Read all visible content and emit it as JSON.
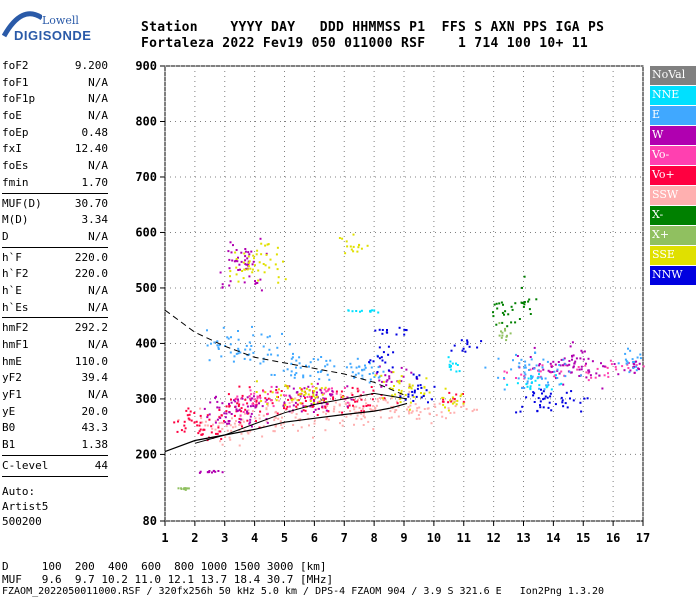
{
  "logo": {
    "top": "Lowell",
    "bottom": "DIGISONDE"
  },
  "header": {
    "line1": "Station    YYYY DAY   DDD HHMMSS P1  FFS S AXN PPS IGA PS",
    "line2": "Fortaleza 2022 Fev19 050 011000 RSF    1 714 100 10+ 11"
  },
  "params": [
    {
      "name": "foF2",
      "value": "9.200"
    },
    {
      "name": "foF1",
      "value": "N/A"
    },
    {
      "name": "foF1p",
      "value": "N/A"
    },
    {
      "name": "foE",
      "value": "N/A"
    },
    {
      "name": "foEp",
      "value": "0.48"
    },
    {
      "name": "fxI",
      "value": "12.40"
    },
    {
      "name": "foEs",
      "value": "N/A"
    },
    {
      "name": "fmin",
      "value": "1.70"
    },
    {
      "sep": true
    },
    {
      "name": "MUF(D)",
      "value": "30.70"
    },
    {
      "name": "M(D)",
      "value": "3.34"
    },
    {
      "name": "D",
      "value": "N/A"
    },
    {
      "sep": true
    },
    {
      "name": "h`F",
      "value": "220.0"
    },
    {
      "name": "h`F2",
      "value": "220.0"
    },
    {
      "name": "h`E",
      "value": "N/A"
    },
    {
      "name": "h`Es",
      "value": "N/A"
    },
    {
      "sep": true
    },
    {
      "name": "hmF2",
      "value": "292.2"
    },
    {
      "name": "hmF1",
      "value": "N/A"
    },
    {
      "name": "hmE",
      "value": "110.0"
    },
    {
      "name": "yF2",
      "value": "39.4"
    },
    {
      "name": "yF1",
      "value": "N/A"
    },
    {
      "name": "yE",
      "value": "20.0"
    },
    {
      "name": "B0",
      "value": "43.3"
    },
    {
      "name": "B1",
      "value": "1.38"
    },
    {
      "sep": true
    },
    {
      "name": "C-level",
      "value": "44"
    },
    {
      "sep": true
    }
  ],
  "auto": {
    "line1": "Auto:",
    "line2": "Artist5",
    "line3": "500200"
  },
  "bottom": {
    "row1": "D     100  200  400  600  800 1000 1500 3000 [km]",
    "row2": "MUF   9.6  9.7 10.2 11.0 12.1 13.7 18.4 30.7 [MHz]",
    "footer": "FZAOM_2022050011000.RSF / 320fx256h 50 kHz 5.0 km / DPS-4 FZAOM 904 / 3.9 S 321.6 E   Ion2Png 1.3.20"
  },
  "legend": [
    {
      "label": "NoVal",
      "color": "#808080"
    },
    {
      "label": "NNE",
      "color": "#00e0ff"
    },
    {
      "label": "E",
      "color": "#40a8ff"
    },
    {
      "label": "W",
      "color": "#b000b0"
    },
    {
      "label": "Vo-",
      "color": "#ff40b0"
    },
    {
      "label": "Vo+",
      "color": "#ff0040"
    },
    {
      "label": "SSW",
      "color": "#ffb0b0"
    },
    {
      "label": "X-",
      "color": "#008000"
    },
    {
      "label": "X+",
      "color": "#90c060"
    },
    {
      "label": "SSE",
      "color": "#e0e000"
    },
    {
      "label": "NNW",
      "color": "#0000e0"
    }
  ],
  "chart_data": {
    "type": "scatter",
    "xlabel": "",
    "ylabel": "",
    "xlim": [
      1,
      17
    ],
    "ylim": [
      80,
      900
    ],
    "x_ticks": [
      1,
      2,
      3,
      4,
      5,
      6,
      7,
      8,
      9,
      10,
      11,
      12,
      13,
      14,
      15,
      16,
      17
    ],
    "y_ticks": [
      80,
      200,
      300,
      400,
      500,
      600,
      700,
      800,
      900
    ],
    "grid": true,
    "series": [
      {
        "name": "SSW",
        "color": "#ffb0b0",
        "clusters": [
          [
            3,
            250,
            1.2,
            25
          ],
          [
            5,
            270,
            1.4,
            25
          ],
          [
            7,
            280,
            1.2,
            25
          ],
          [
            8.5,
            285,
            1.2,
            20
          ],
          [
            9.5,
            280,
            1.3,
            15
          ],
          [
            10.8,
            285,
            0.8,
            10
          ]
        ]
      },
      {
        "name": "Vo+",
        "color": "#ff0040",
        "clusters": [
          [
            2,
            260,
            0.8,
            25
          ],
          [
            3.5,
            285,
            1.0,
            30
          ],
          [
            5.5,
            295,
            1.2,
            25
          ],
          [
            7.5,
            300,
            1.0,
            20
          ],
          [
            10.5,
            305,
            0.6,
            10
          ],
          [
            2.5,
            240,
            0.6,
            15
          ]
        ]
      },
      {
        "name": "Vo-",
        "color": "#ff40b0",
        "clusters": [
          [
            4,
            300,
            1.0,
            20
          ],
          [
            6.5,
            310,
            1.0,
            15
          ],
          [
            14.2,
            350,
            1.5,
            15
          ],
          [
            16.5,
            360,
            1,
            10
          ]
        ]
      },
      {
        "name": "W",
        "color": "#b000b0",
        "clusters": [
          [
            3.5,
            280,
            1.2,
            30
          ],
          [
            6,
            300,
            1.3,
            25
          ],
          [
            8.5,
            340,
            0.7,
            20
          ],
          [
            3.6,
            550,
            0.8,
            40
          ],
          [
            14.5,
            360,
            1.8,
            25
          ],
          [
            16.8,
            360,
            0.6,
            15
          ],
          [
            2.5,
            170,
            0.4,
            2
          ]
        ]
      },
      {
        "name": "E",
        "color": "#40a8ff",
        "clusters": [
          [
            3.8,
            400,
            1.3,
            25
          ],
          [
            5.6,
            360,
            1.2,
            20
          ],
          [
            7.6,
            350,
            1.0,
            20
          ],
          [
            13.2,
            350,
            1.2,
            30
          ],
          [
            16.5,
            370,
            0.6,
            20
          ]
        ]
      },
      {
        "name": "NNE",
        "color": "#00e0ff",
        "clusters": [
          [
            7.6,
            460,
            0.8,
            3
          ],
          [
            10.6,
            360,
            0.4,
            10
          ],
          [
            13.5,
            330,
            0.8,
            15
          ]
        ]
      },
      {
        "name": "SSE",
        "color": "#e0e000",
        "clusters": [
          [
            4,
            550,
            1.0,
            30
          ],
          [
            7.2,
            580,
            0.5,
            20
          ],
          [
            5.5,
            310,
            1.5,
            20
          ],
          [
            9,
            320,
            1,
            25
          ],
          [
            10.5,
            300,
            0.6,
            15
          ]
        ]
      },
      {
        "name": "NNW",
        "color": "#0000e0",
        "clusters": [
          [
            8.6,
            420,
            0.8,
            10
          ],
          [
            9.5,
            320,
            0.6,
            25
          ],
          [
            13.8,
            300,
            1.3,
            20
          ],
          [
            11,
            400,
            0.5,
            15
          ],
          [
            8.2,
            370,
            0.5,
            20
          ]
        ]
      },
      {
        "name": "X-",
        "color": "#008000",
        "clusters": [
          [
            12.4,
            460,
            0.5,
            25
          ],
          [
            13,
            480,
            0.3,
            30
          ]
        ]
      },
      {
        "name": "X+",
        "color": "#90c060",
        "clusters": [
          [
            1.6,
            140,
            0.3,
            2
          ],
          [
            12.3,
            420,
            0.3,
            15
          ]
        ]
      },
      {
        "name": "NoVal",
        "color": "#808080",
        "clusters": [
          [
            5,
            300,
            3,
            30
          ]
        ]
      }
    ],
    "trace_dashed": [
      [
        1,
        460
      ],
      [
        2,
        420
      ],
      [
        3,
        395
      ],
      [
        4,
        375
      ],
      [
        5,
        365
      ],
      [
        6,
        355
      ],
      [
        7,
        345
      ],
      [
        8,
        330
      ],
      [
        9.1,
        305
      ]
    ],
    "trace_solid": [
      [
        1,
        205
      ],
      [
        2,
        225
      ],
      [
        3,
        235
      ],
      [
        4,
        245
      ],
      [
        5,
        258
      ],
      [
        6,
        265
      ],
      [
        7,
        272
      ],
      [
        8,
        278
      ],
      [
        8.5,
        283
      ],
      [
        9.1,
        292
      ]
    ],
    "trace_solid_upper": [
      [
        2,
        220
      ],
      [
        3,
        235
      ],
      [
        4,
        255
      ],
      [
        5,
        275
      ],
      [
        6,
        290
      ],
      [
        7,
        300
      ],
      [
        8,
        310
      ],
      [
        9.1,
        300
      ]
    ]
  }
}
